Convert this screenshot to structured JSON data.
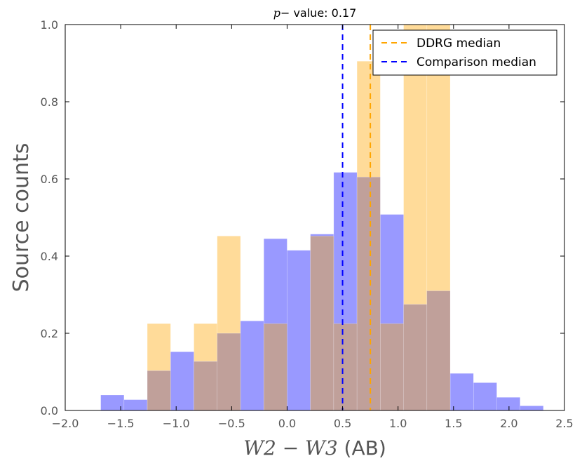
{
  "chart_data": {
    "type": "bar",
    "title_prefix": "p",
    "title_main": "− value: 0.17",
    "xlabel_math": "W2 − W3",
    "xlabel_unit": " (AB)",
    "ylabel": "Source counts",
    "xlim": [
      -2.0,
      2.5
    ],
    "ylim": [
      0.0,
      1.0
    ],
    "xticks": [
      -2.0,
      -1.5,
      -1.0,
      -0.5,
      0.0,
      0.5,
      1.0,
      1.5,
      2.0,
      2.5
    ],
    "xtick_labels": [
      "−2.0",
      "−1.5",
      "−1.0",
      "−0.5",
      "0.0",
      "0.5",
      "1.0",
      "1.5",
      "2.0",
      "2.5"
    ],
    "yticks": [
      0.0,
      0.2,
      0.4,
      0.6,
      0.8,
      1.0
    ],
    "ytick_labels": [
      "0.0",
      "0.2",
      "0.4",
      "0.6",
      "0.8",
      "1.0"
    ],
    "series": [
      {
        "name": "Comparison",
        "color": "#9999ff",
        "bin_edges": [
          -1.68,
          -1.47,
          -1.26,
          -1.05,
          -0.84,
          -0.63,
          -0.42,
          -0.21,
          0.0,
          0.21,
          0.42,
          0.63,
          0.84,
          1.05,
          1.26,
          1.47,
          1.68,
          1.89,
          2.1,
          2.31
        ],
        "values": [
          0.04,
          0.028,
          0.103,
          0.152,
          0.127,
          0.2,
          0.232,
          0.445,
          0.415,
          0.457,
          0.617,
          0.605,
          0.508,
          0.275,
          0.31,
          0.096,
          0.072,
          0.034,
          0.012
        ]
      },
      {
        "name": "DDRG",
        "color": "#ffdb99",
        "bin_edges": [
          -1.26,
          -1.05,
          -0.84,
          -0.63,
          -0.42,
          -0.21,
          0.0,
          0.21,
          0.42,
          0.63,
          0.84,
          1.05,
          1.26,
          1.47
        ],
        "values": [
          0.225,
          0.0,
          0.225,
          0.452,
          0.0,
          0.225,
          0.0,
          0.452,
          0.225,
          0.905,
          0.225,
          1.0,
          1.0
        ]
      }
    ],
    "overlap_color": "#c0a09a",
    "medians": [
      {
        "name": "DDRG median",
        "label": "DDRG median",
        "x": 0.75,
        "color": "#ffa500"
      },
      {
        "name": "Comparison median",
        "label": "Comparison median",
        "x": 0.5,
        "color": "#0000ff"
      }
    ],
    "legend_position": "upper-right"
  }
}
